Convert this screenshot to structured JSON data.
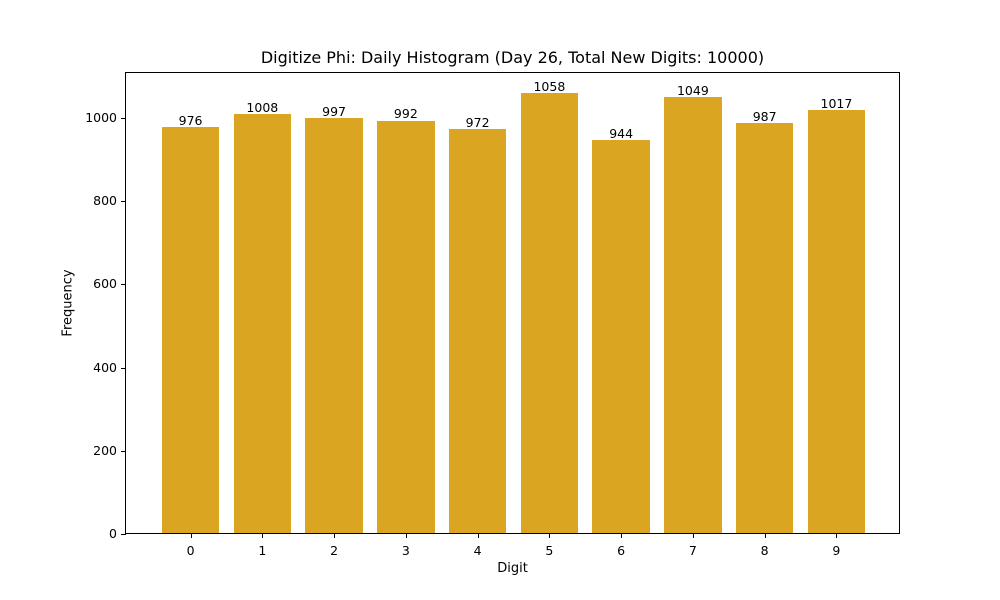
{
  "chart_data": {
    "type": "bar",
    "title": "Digitize Phi: Daily Histogram (Day 26, Total New Digits: 10000)",
    "xlabel": "Digit",
    "ylabel": "Frequency",
    "categories": [
      "0",
      "1",
      "2",
      "3",
      "4",
      "5",
      "6",
      "7",
      "8",
      "9"
    ],
    "values": [
      976,
      1008,
      997,
      992,
      972,
      1058,
      944,
      1049,
      987,
      1017
    ],
    "data_labels": [
      "976",
      "1008",
      "997",
      "992",
      "972",
      "1058",
      "944",
      "1049",
      "987",
      "1017"
    ],
    "yticks": [
      0,
      200,
      400,
      600,
      800,
      1000
    ],
    "ytick_labels": [
      "0",
      "200",
      "400",
      "600",
      "800",
      "1000"
    ],
    "ylim": [
      0,
      1111
    ],
    "bar_color": "#DAA520",
    "grid": false,
    "legend": null
  }
}
